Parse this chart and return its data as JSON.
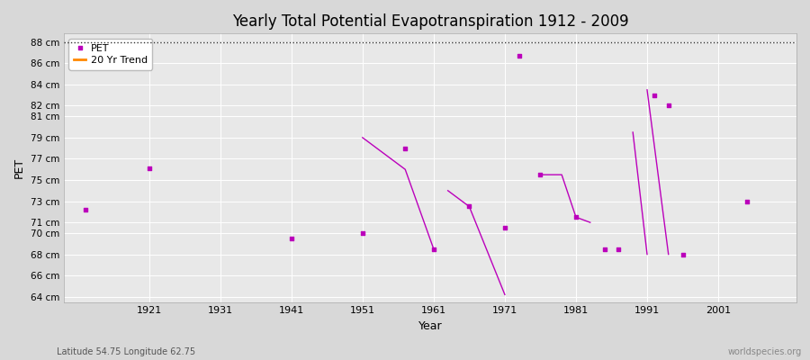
{
  "title": "Yearly Total Potential Evapotranspiration 1912 - 2009",
  "xlabel": "Year",
  "ylabel": "PET",
  "subtitle_left": "Latitude 54.75 Longitude 62.75",
  "subtitle_right": "worldspecies.org",
  "ylim": [
    63.5,
    88.8
  ],
  "xlim": [
    1909,
    2012
  ],
  "yticks": [
    64,
    66,
    68,
    70,
    71,
    73,
    75,
    77,
    79,
    81,
    82,
    84,
    86,
    88
  ],
  "ytick_labels": [
    "64 cm",
    "66 cm",
    "68 cm",
    "70 cm",
    "71 cm",
    "73 cm",
    "75 cm",
    "77 cm",
    "79 cm",
    "81 cm",
    "82 cm",
    "84 cm",
    "86 cm",
    "88 cm"
  ],
  "xticks": [
    1921,
    1931,
    1941,
    1951,
    1961,
    1971,
    1981,
    1991,
    2001
  ],
  "background_color": "#d8d8d8",
  "plot_bg_color": "#e8e8e8",
  "grid_color": "#ffffff",
  "pet_color": "#bb00bb",
  "trend_color": "#ff8800",
  "pet_scatter": [
    [
      1912,
      72.2
    ],
    [
      1921,
      76.1
    ],
    [
      1941,
      69.5
    ],
    [
      1951,
      70.0
    ],
    [
      1957,
      78.0
    ],
    [
      1961,
      68.5
    ],
    [
      1966,
      72.5
    ],
    [
      1971,
      70.5
    ],
    [
      1973,
      86.7
    ],
    [
      1976,
      75.5
    ],
    [
      1981,
      71.5
    ],
    [
      1985,
      68.5
    ],
    [
      1987,
      68.5
    ],
    [
      1992,
      83.0
    ],
    [
      1994,
      82.0
    ],
    [
      1996,
      68.0
    ],
    [
      2005,
      73.0
    ]
  ],
  "trend_lines": [
    [
      [
        1951,
        79.0
      ],
      [
        1957,
        76.0
      ],
      [
        1961,
        68.5
      ]
    ],
    [
      [
        1963,
        74.0
      ],
      [
        1966,
        72.5
      ],
      [
        1971,
        64.2
      ]
    ],
    [
      [
        1976,
        75.5
      ],
      [
        1979,
        75.5
      ],
      [
        1981,
        71.5
      ],
      [
        1983,
        71.0
      ]
    ],
    [
      [
        1989,
        79.5
      ],
      [
        1991,
        68.0
      ]
    ],
    [
      [
        1991,
        83.5
      ],
      [
        1994,
        68.0
      ]
    ]
  ]
}
